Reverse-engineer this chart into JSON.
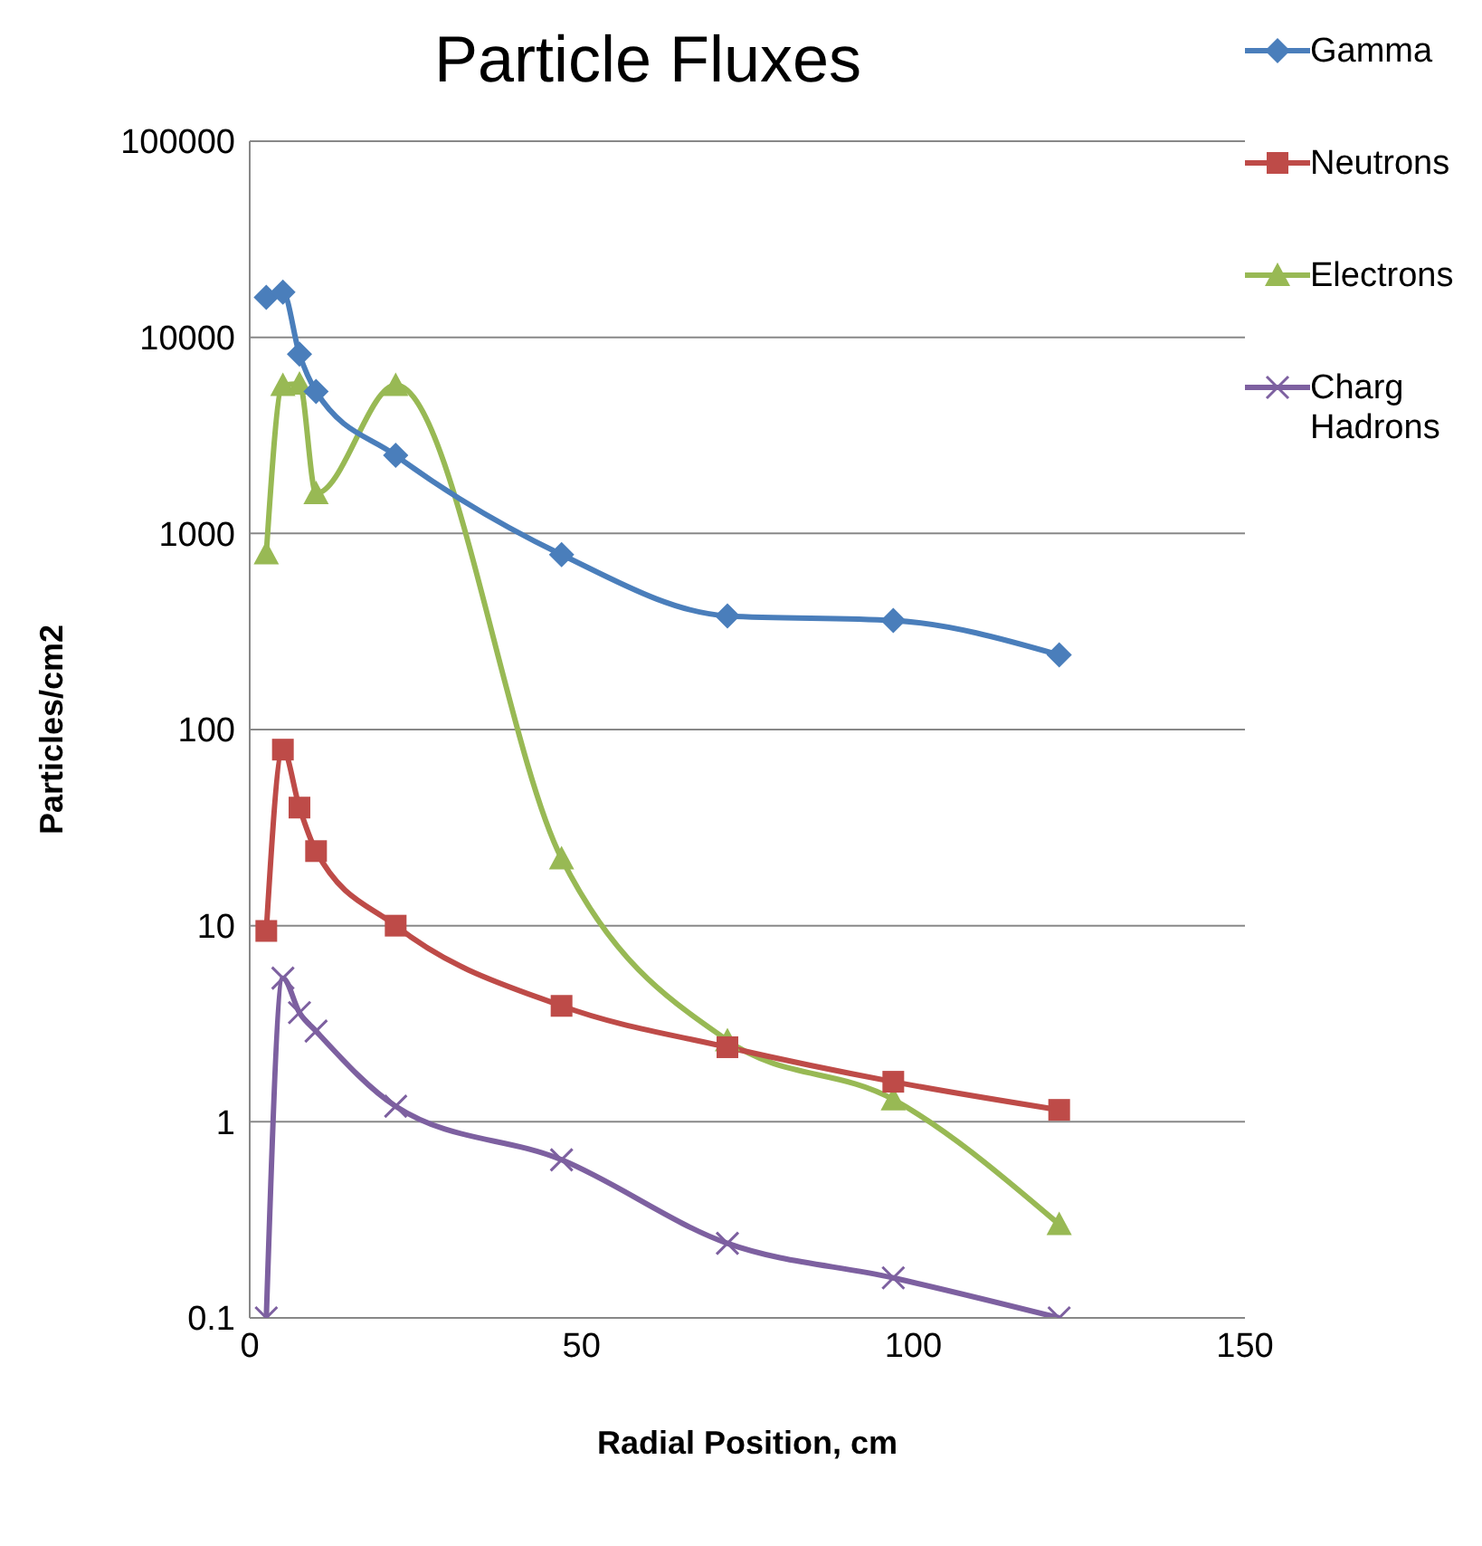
{
  "chart_data": {
    "type": "line",
    "title": "Particle Fluxes",
    "xlabel": "Radial Position, cm",
    "ylabel": "Particles/cm2",
    "x": [
      2.5,
      5,
      7.5,
      10,
      22,
      47,
      72,
      97,
      122
    ],
    "series": [
      {
        "name": "Gamma",
        "color": "#4a7ebb",
        "marker": "diamond",
        "values": [
          16000,
          17000,
          8200,
          5300,
          2500,
          780,
          380,
          360,
          240
        ]
      },
      {
        "name": "Neutrons",
        "color": "#be4b48",
        "marker": "square",
        "values": [
          9.4,
          79,
          40,
          24,
          10,
          3.9,
          2.4,
          1.6,
          1.15
        ]
      },
      {
        "name": "Electrons",
        "color": "#98b954",
        "marker": "triangle",
        "values": [
          790,
          5700,
          5800,
          1600,
          5700,
          22,
          2.6,
          1.3,
          0.3
        ]
      },
      {
        "name": "Charg Hadrons",
        "color": "#7d60a0",
        "marker": "cross",
        "values": [
          0.1,
          5.4,
          3.6,
          2.9,
          1.2,
          0.64,
          0.24,
          0.16,
          0.1
        ]
      }
    ],
    "log": "y",
    "xlim": [
      0,
      150
    ],
    "xticks": [
      0,
      50,
      100,
      150
    ],
    "ylim": [
      0.1,
      100000
    ],
    "yticks": [
      0.1,
      1,
      10,
      100,
      1000,
      10000,
      100000
    ],
    "grid": "y",
    "legend": "right"
  }
}
